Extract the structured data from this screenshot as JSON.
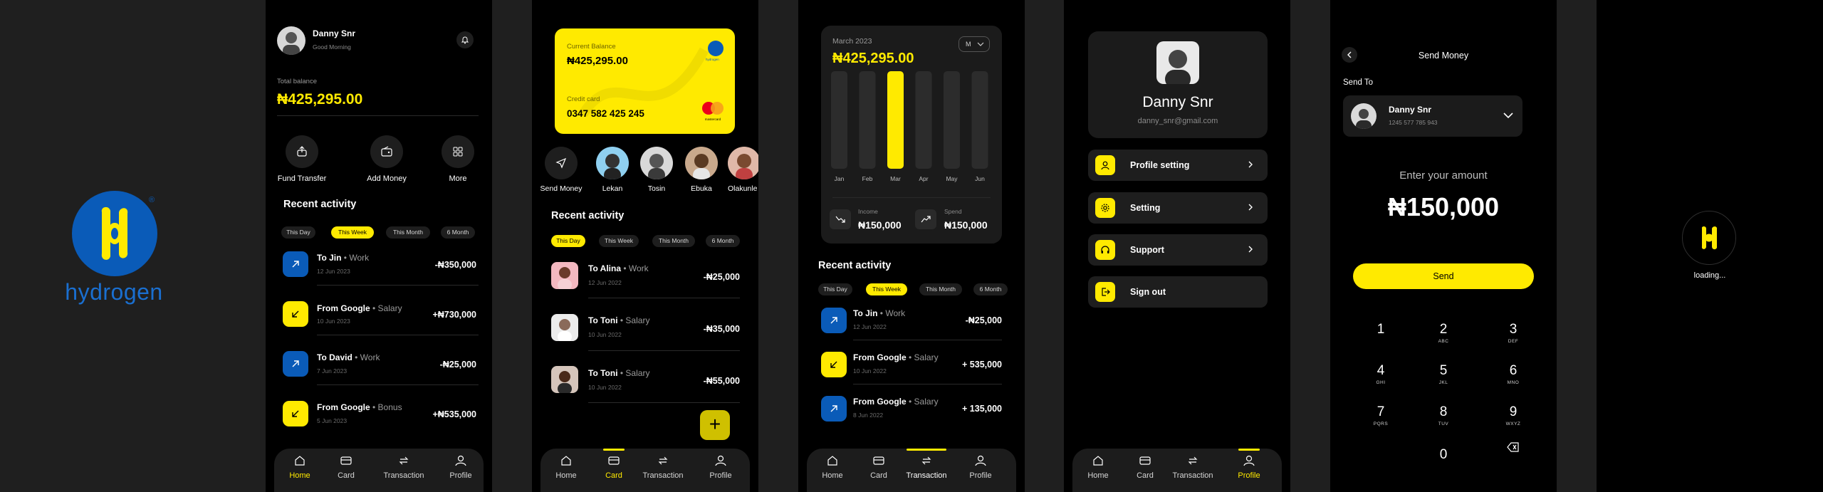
{
  "brand": {
    "name": "hydrogen",
    "reg_mark": "®",
    "colors": {
      "brand_blue": "#0a5bb8",
      "accent": "#ffea00"
    }
  },
  "nav": {
    "home": "Home",
    "card": "Card",
    "transaction": "Transaction",
    "profile": "Profile"
  },
  "home": {
    "user_name": "Danny Snr",
    "greeting": "Good Morning",
    "total_label": "Total balance",
    "total_value": "₦425,295.00",
    "actions": [
      "Fund Transfer",
      "Add Money",
      "More"
    ],
    "section_title": "Recent activity",
    "filters": [
      "This Day",
      "This Week",
      "This Month",
      "6 Month"
    ],
    "active_filter": "This Week",
    "transactions": [
      {
        "title": "To Jin",
        "category": "• Work",
        "date": "12 Jun 2023",
        "amount": "-₦350,000",
        "icon": "arrow-up-right-icon"
      },
      {
        "title": "From Google",
        "category": "• Salary",
        "date": "10 Jun 2023",
        "amount": "+₦730,000",
        "icon": "arrow-down-left-icon"
      },
      {
        "title": "To David",
        "category": "• Work",
        "date": "7 Jun 2023",
        "amount": "-₦25,000",
        "icon": "arrow-up-right-icon"
      },
      {
        "title": "From Google",
        "category": "• Bonus",
        "date": "5 Jun 2023",
        "amount": "+₦535,000",
        "icon": "arrow-down-left-icon"
      }
    ]
  },
  "card": {
    "balance_label": "Current Balance",
    "balance_value": "₦425,295.00",
    "card_label": "Credit card",
    "card_number": "0347 582 425 245",
    "card_brand": "mastercard",
    "card_logo_text": "hydrogen",
    "contacts": [
      "Send Money",
      "Lekan",
      "Tosin",
      "Ebuka",
      "Olakunle"
    ],
    "section_title": "Recent activity",
    "filters": [
      "This Day",
      "This Week",
      "This Month",
      "6 Month"
    ],
    "active_filter": "This Day",
    "transactions": [
      {
        "title": "To Alina",
        "category": "• Work",
        "date": "12 Jun 2022",
        "amount": "-₦25,000"
      },
      {
        "title": "To Toni",
        "category": "• Salary",
        "date": "10 Jun 2022",
        "amount": "-₦35,000"
      },
      {
        "title": "To Toni",
        "category": "• Salary",
        "date": "10 Jun 2022",
        "amount": "-₦55,000"
      }
    ],
    "fab": "+"
  },
  "stats": {
    "period": "March 2023",
    "total": "₦425,295.00",
    "select_value": "M",
    "chart_data": {
      "type": "bar",
      "categories": [
        "Jan",
        "Feb",
        "Mar",
        "Apr",
        "May",
        "Jun"
      ],
      "highlighted": "Mar",
      "colors": {
        "bar": "#2c2c2c",
        "highlight": "#ffea00"
      }
    },
    "income_label": "Income",
    "income_value": "₦150,000",
    "spend_label": "Spend",
    "spend_value": "₦150,000",
    "section_title": "Recent activity",
    "filters": [
      "This Day",
      "This Week",
      "This Month",
      "6 Month"
    ],
    "active_filter": "This Week",
    "transactions": [
      {
        "title": "To Jin",
        "category": "• Work",
        "date": "12 Jun 2022",
        "amount": "-₦25,000",
        "icon": "arrow-up-right-icon"
      },
      {
        "title": "From Google",
        "category": "• Salary",
        "date": "10 Jun 2022",
        "amount": "+ 535,000",
        "icon": "arrow-down-left-icon"
      },
      {
        "title": "From Google",
        "category": "• Salary",
        "date": "8 Jun 2022",
        "amount": "+ 135,000",
        "icon": "arrow-up-right-icon"
      }
    ]
  },
  "profile": {
    "name": "Danny Snr",
    "email": "danny_snr@gmail.com",
    "menu": [
      {
        "label": "Profile setting",
        "icon": "user-icon"
      },
      {
        "label": "Setting",
        "icon": "gear-icon"
      },
      {
        "label": "Support",
        "icon": "headset-icon"
      },
      {
        "label": "Sign out",
        "icon": "sign-out-icon"
      }
    ]
  },
  "send": {
    "title": "Send Money",
    "send_to_label": "Send To",
    "recipient_name": "Danny Snr",
    "recipient_account": "1245 577 785 943",
    "prompt": "Enter your amount",
    "amount": "₦150,000",
    "button": "Send",
    "keys": [
      {
        "n": "1",
        "l": ""
      },
      {
        "n": "2",
        "l": "ABC"
      },
      {
        "n": "3",
        "l": "DEF"
      },
      {
        "n": "4",
        "l": "GHI"
      },
      {
        "n": "5",
        "l": "JKL"
      },
      {
        "n": "6",
        "l": "MNO"
      },
      {
        "n": "7",
        "l": "PQRS"
      },
      {
        "n": "8",
        "l": "TUV"
      },
      {
        "n": "9",
        "l": "WXYZ"
      },
      {
        "n": "0",
        "l": ""
      }
    ]
  },
  "splash": {
    "loading": "loading..."
  }
}
